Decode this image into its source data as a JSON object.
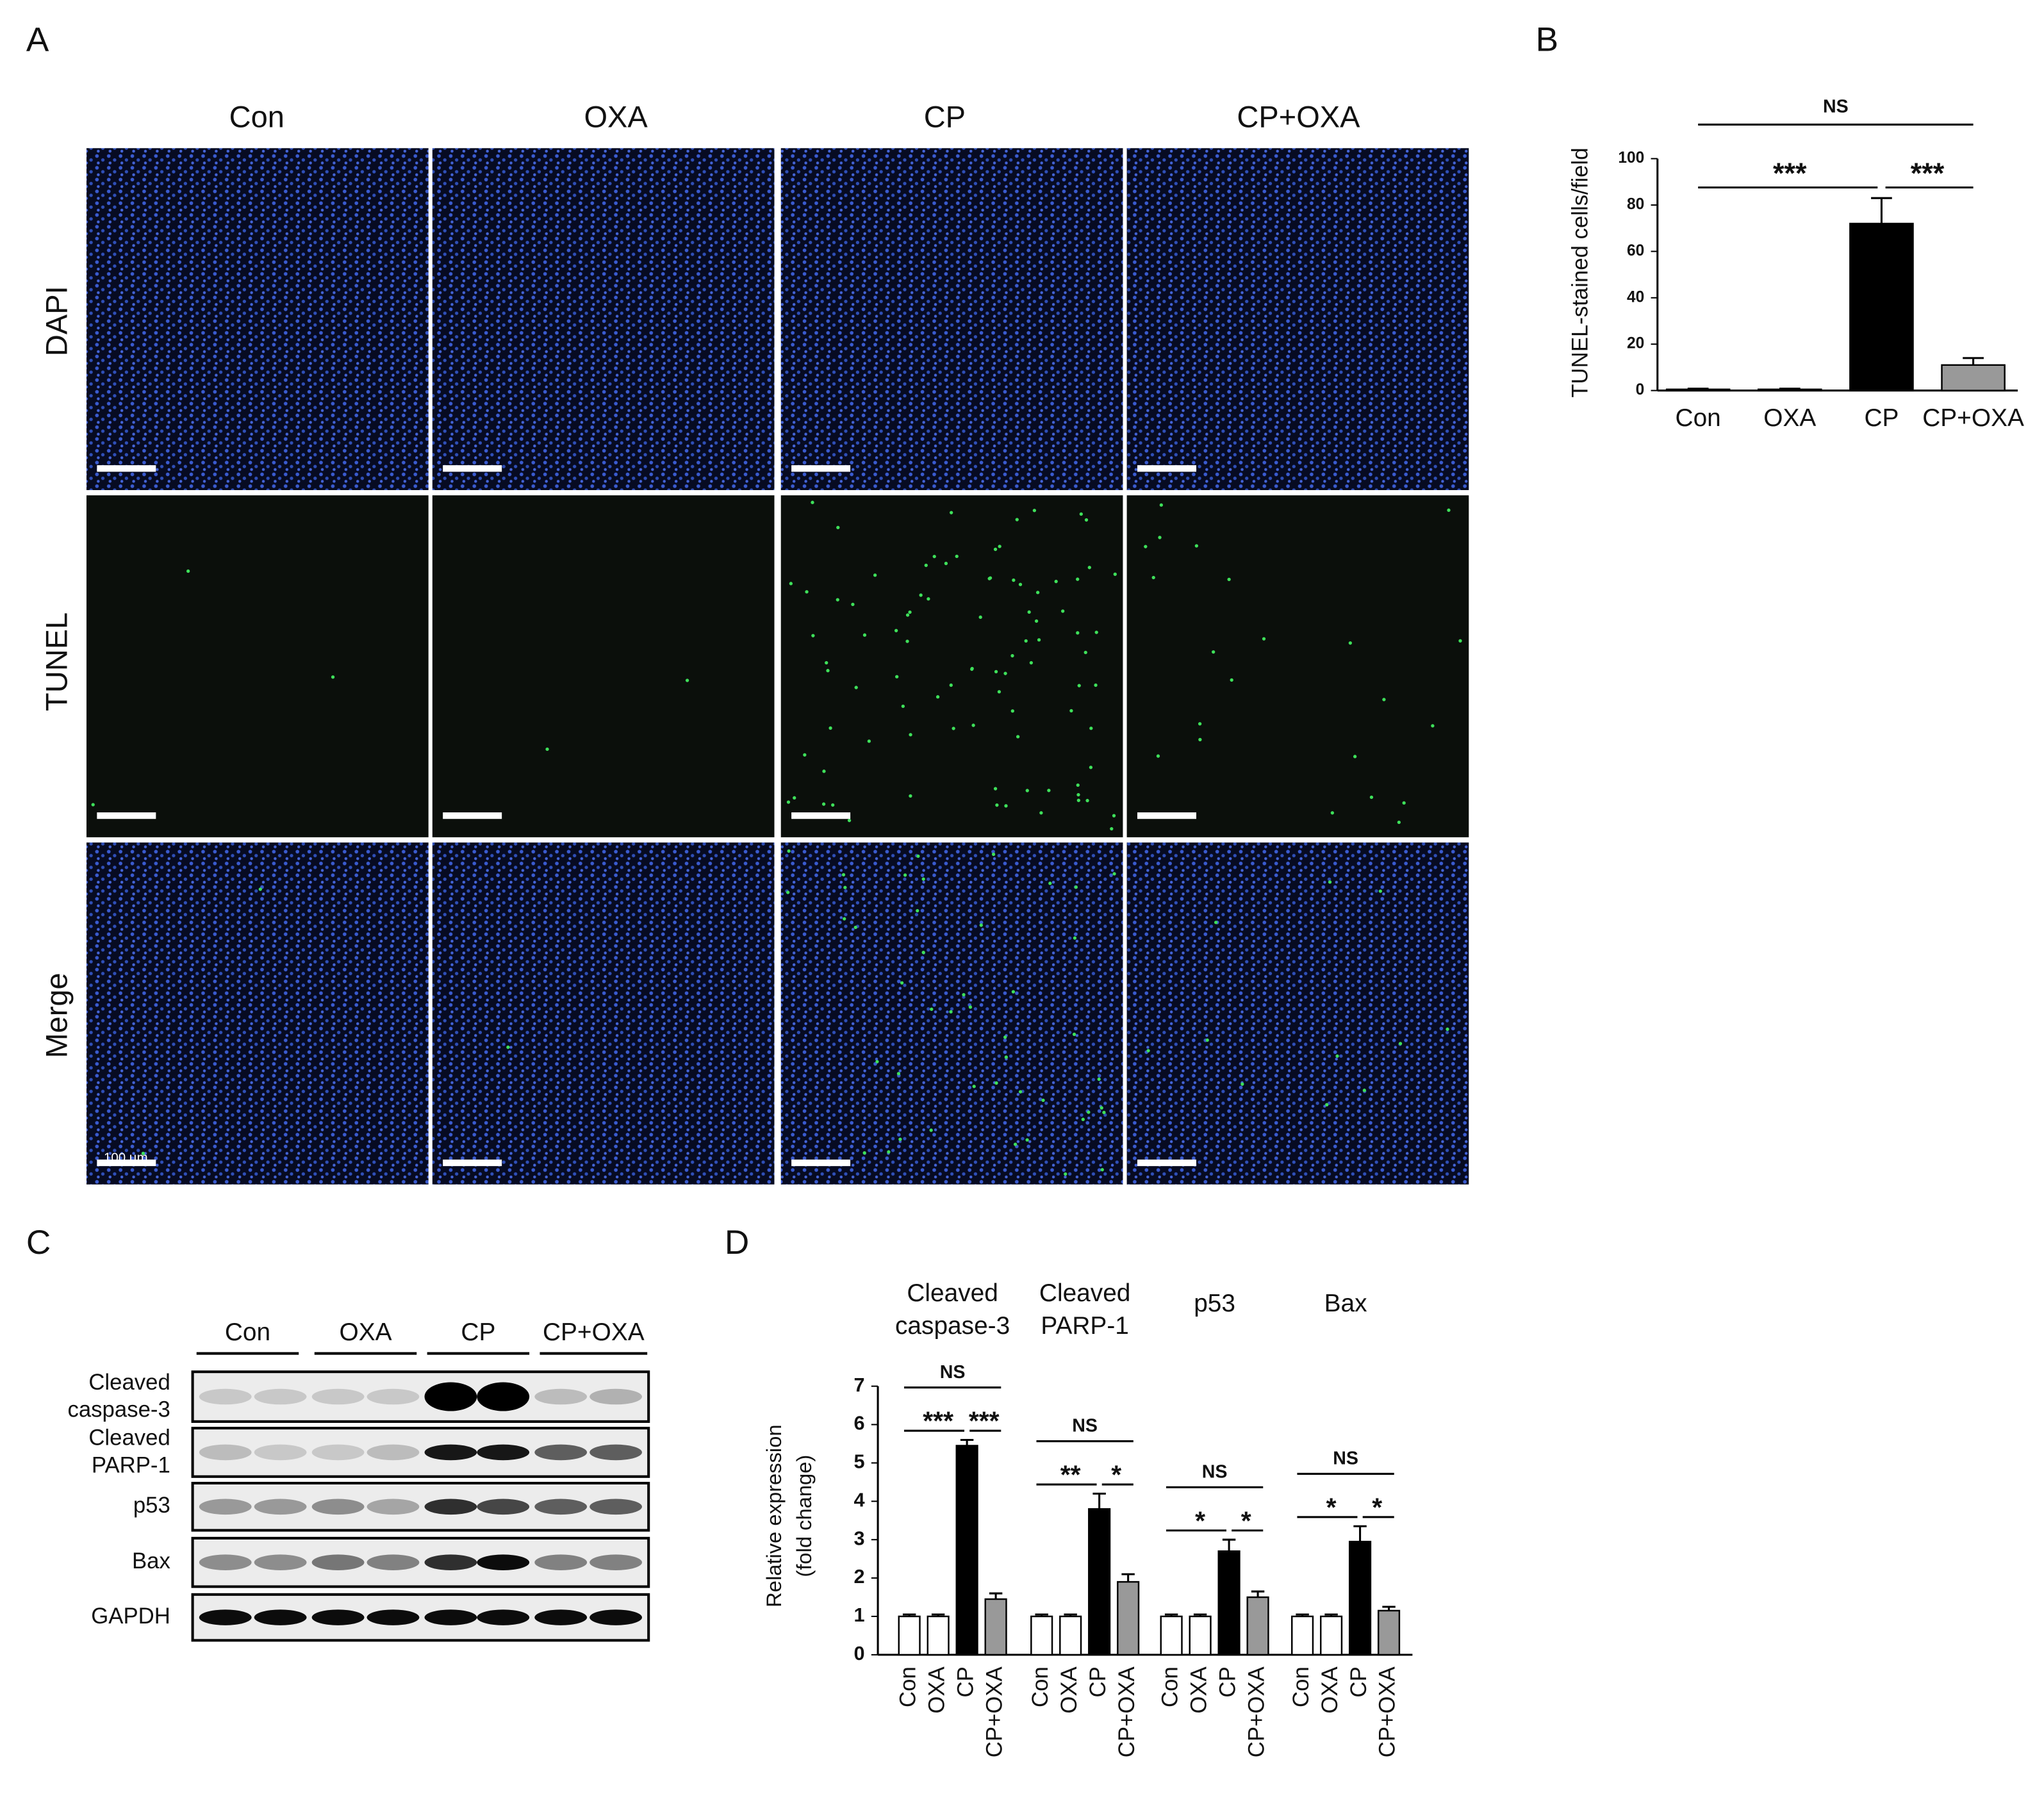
{
  "panel_labels": [
    "A",
    "B",
    "C",
    "D"
  ],
  "panel_a": {
    "columns": [
      "Con",
      "OXA",
      "CP",
      "CP+OXA"
    ],
    "rows": [
      "DAPI",
      "TUNEL",
      "Merge"
    ],
    "scale_bar_label": "100 µm"
  },
  "panel_c": {
    "lanes": [
      "Con",
      "OXA",
      "CP",
      "CP+OXA"
    ],
    "proteins": [
      [
        "Cleaved",
        "caspase-3"
      ],
      [
        "Cleaved",
        "PARP-1"
      ],
      [
        "p53"
      ],
      [
        "Bax"
      ],
      [
        "GAPDH"
      ]
    ]
  },
  "chart_data": [
    {
      "type": "bar",
      "ylabel": "TUNEL-stained cells/field",
      "categories": [
        "Con",
        "OXA",
        "CP",
        "CP+OXA"
      ],
      "values": [
        0.5,
        0.5,
        72,
        11
      ],
      "errors": [
        0.3,
        0.3,
        11,
        3
      ],
      "colors": [
        "#ffffff",
        "#ffffff",
        "#000000",
        "#999999"
      ],
      "ylim": [
        0,
        100
      ],
      "yticks": [
        0,
        20,
        40,
        60,
        80,
        100
      ],
      "annotations": [
        "NS",
        "***",
        "***"
      ]
    },
    {
      "type": "grouped_bar",
      "ylabel": [
        "Relative expression",
        "(fold change)"
      ],
      "colors": [
        "#ffffff",
        "#ffffff",
        "#000000",
        "#999999"
      ],
      "ylim": [
        0,
        7
      ],
      "yticks": [
        0,
        1,
        2,
        3,
        4,
        5,
        6,
        7
      ],
      "groups": [
        {
          "title": [
            "Cleaved",
            "caspase-3"
          ],
          "categories": [
            "Con",
            "OXA",
            "CP",
            "CP+OXA"
          ],
          "values": [
            1,
            1,
            5.45,
            1.45
          ],
          "errors": [
            0.05,
            0.05,
            0.15,
            0.15
          ],
          "annotations": [
            "NS",
            "***",
            "***"
          ]
        },
        {
          "title": [
            "Cleaved",
            "PARP-1"
          ],
          "categories": [
            "Con",
            "OXA",
            "CP",
            "CP+OXA"
          ],
          "values": [
            1,
            1,
            3.8,
            1.9
          ],
          "errors": [
            0.05,
            0.05,
            0.4,
            0.2
          ],
          "annotations": [
            "NS",
            "**",
            "*"
          ]
        },
        {
          "title": [
            "p53"
          ],
          "categories": [
            "Con",
            "OXA",
            "CP",
            "CP+OXA"
          ],
          "values": [
            1,
            1,
            2.7,
            1.5
          ],
          "errors": [
            0.05,
            0.05,
            0.3,
            0.15
          ],
          "annotations": [
            "NS",
            "*",
            "*"
          ]
        },
        {
          "title": [
            "Bax"
          ],
          "categories": [
            "Con",
            "OXA",
            "CP",
            "CP+OXA"
          ],
          "values": [
            1,
            1,
            2.95,
            1.15
          ],
          "errors": [
            0.05,
            0.05,
            0.4,
            0.1
          ],
          "annotations": [
            "NS",
            "*",
            "*"
          ]
        }
      ]
    }
  ]
}
